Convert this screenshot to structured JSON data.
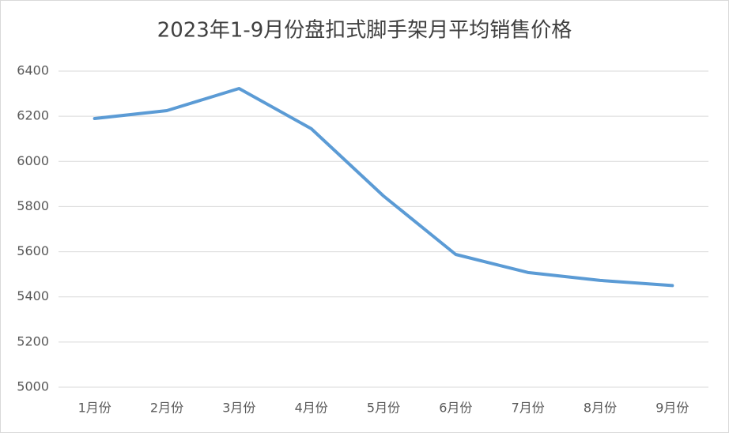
{
  "chart_data": {
    "type": "line",
    "title": "2023年1-9月份盘扣式脚手架月平均销售价格",
    "categories": [
      "1月份",
      "2月份",
      "3月份",
      "4月份",
      "5月份",
      "6月份",
      "7月份",
      "8月份",
      "9月份"
    ],
    "series": [
      {
        "name": "月平均销售价格",
        "color": "#5b9bd5",
        "values": [
          6190,
          6225,
          6323,
          6145,
          5847,
          5588,
          5508,
          5473,
          5450
        ]
      }
    ],
    "ylim": [
      5000,
      6400
    ],
    "yticks": [
      5000,
      5200,
      5400,
      5600,
      5800,
      6000,
      6200,
      6400
    ],
    "grid": true
  }
}
